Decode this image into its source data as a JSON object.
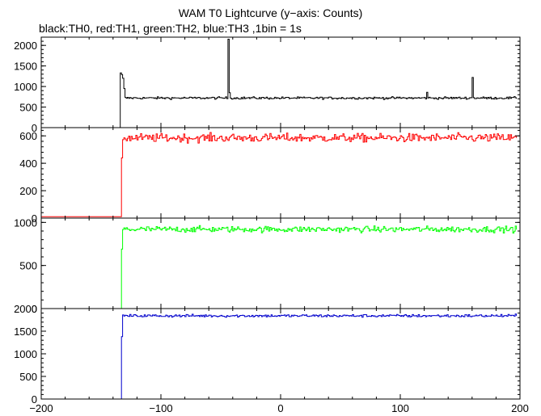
{
  "title": "WAM T0 Lightcurve (y−axis: Counts)",
  "subtitle": "black:TH0, red:TH1, green:TH2, blue:TH3 ,1bin = 1s",
  "chart_data": {
    "type": "line",
    "xlim": [
      -200,
      200
    ],
    "x_ticks": [
      -200,
      -100,
      0,
      100,
      200
    ],
    "x_tick_labels": [
      "−200",
      "−100",
      "0",
      "100",
      "200"
    ],
    "trigger_time": -133,
    "panels": [
      {
        "name": "TH0",
        "color": "#000000",
        "ylim": [
          0,
          2200
        ],
        "y_ticks": [
          0,
          500,
          1000,
          1500,
          2000
        ],
        "y_tick_labels": [
          "0",
          "500",
          "1000",
          "1500",
          "2000"
        ],
        "pre_level": 0,
        "post_level": 720,
        "noise": 20,
        "spikes": [
          {
            "x": -134,
            "y": 1330
          },
          {
            "x": -133,
            "y": 1290
          },
          {
            "x": -132,
            "y": 1200
          },
          {
            "x": -131,
            "y": 950
          },
          {
            "x": -44,
            "y": 2150
          },
          {
            "x": -43,
            "y": 850
          },
          {
            "x": 122,
            "y": 860
          },
          {
            "x": 160,
            "y": 1220
          }
        ]
      },
      {
        "name": "TH1",
        "color": "#ff0000",
        "ylim": [
          0,
          660
        ],
        "y_ticks": [
          0,
          200,
          400,
          600
        ],
        "y_tick_labels": [
          "0",
          "200",
          "400",
          "600"
        ],
        "pre_level": 10,
        "post_level": 585,
        "noise": 22,
        "spikes": []
      },
      {
        "name": "TH2",
        "color": "#00ff00",
        "ylim": [
          0,
          1050
        ],
        "y_ticks": [
          0,
          500,
          1000
        ],
        "y_tick_labels": [
          "0",
          "500",
          "1000"
        ],
        "pre_level": 0,
        "post_level": 920,
        "noise": 25,
        "spikes": []
      },
      {
        "name": "TH3",
        "color": "#0000cc",
        "ylim": [
          0,
          2000
        ],
        "y_ticks": [
          0,
          500,
          1000,
          1500,
          2000
        ],
        "y_tick_labels": [
          "0",
          "500",
          "1000",
          "1500",
          "2000"
        ],
        "pre_level": 0,
        "post_level": 1840,
        "noise": 22,
        "spikes": []
      }
    ]
  }
}
